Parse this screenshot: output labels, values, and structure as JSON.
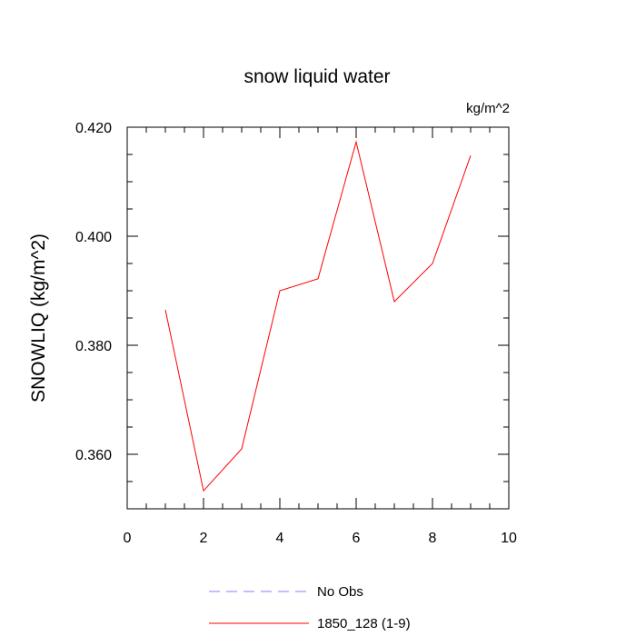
{
  "chart_data": {
    "type": "line",
    "title": "snow liquid water",
    "units": "kg/m^2",
    "ylabel": "SNOWLIQ  (kg/m^2)",
    "xlabel": "",
    "xlim": [
      0,
      10
    ],
    "ylim": [
      0.35,
      0.42
    ],
    "x_ticks": [
      0,
      2,
      4,
      6,
      8,
      10
    ],
    "x_tick_labels": [
      "0",
      "2",
      "4",
      "6",
      "8",
      "10"
    ],
    "y_ticks": [
      0.36,
      0.38,
      0.4,
      0.42
    ],
    "y_tick_labels": [
      "0.360",
      "0.380",
      "0.400",
      "0.420"
    ],
    "grid": false,
    "legend_position": "bottom",
    "series": [
      {
        "name": "No Obs",
        "color": "#8080ff",
        "dash": "dashed",
        "x": [],
        "values": []
      },
      {
        "name": "1850_128 (1-9)",
        "color": "#ff0000",
        "dash": "solid",
        "x": [
          1,
          2,
          3,
          4,
          5,
          6,
          7,
          8,
          9
        ],
        "values": [
          0.3865,
          0.3533,
          0.361,
          0.39,
          0.3922,
          0.4173,
          0.388,
          0.395,
          0.4148
        ]
      }
    ]
  }
}
